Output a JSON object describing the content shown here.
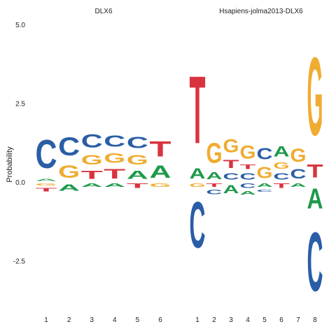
{
  "chart_data": {
    "type": "sequence-logo",
    "ylabel": "Probability",
    "yticks": [
      5.0,
      2.5,
      0.0,
      -2.5
    ],
    "ytick_labels": [
      "5.0",
      "2.5",
      "0.0",
      "-2.5"
    ],
    "ylim": [
      -4.5,
      5.3
    ],
    "colors": {
      "A": "#1e9a4b",
      "C": "#2a5ea6",
      "G": "#f0ac30",
      "T": "#d9333f"
    },
    "panels": [
      {
        "title": "DLX6",
        "x_labels": [
          "1",
          "2",
          "3",
          "4",
          "5",
          "6"
        ],
        "columns": [
          {
            "pos": [
              [
                "A",
                0.15
              ],
              [
                "C",
                1.45
              ]
            ],
            "neg": [
              [
                "G",
                0.15
              ],
              [
                "T",
                0.2
              ]
            ]
          },
          {
            "pos": [
              [
                "G",
                0.65
              ],
              [
                "C",
                0.95
              ]
            ],
            "neg": [
              [
                "A",
                0.35
              ]
            ]
          },
          {
            "pos": [
              [
                "T",
                0.45
              ],
              [
                "G",
                0.5
              ],
              [
                "C",
                0.7
              ]
            ],
            "neg": [
              [
                "A",
                0.2
              ]
            ]
          },
          {
            "pos": [
              [
                "T",
                0.5
              ],
              [
                "G",
                0.5
              ],
              [
                "C",
                0.6
              ]
            ],
            "neg": [
              [
                "A",
                0.2
              ]
            ]
          },
          {
            "pos": [
              [
                "A",
                0.45
              ],
              [
                "G",
                0.5
              ],
              [
                "C",
                0.6
              ]
            ],
            "neg": [
              [
                "T",
                0.25
              ]
            ]
          },
          {
            "pos": [
              [
                "A",
                0.65
              ],
              [
                "T",
                0.8
              ]
            ],
            "neg": [
              [
                "G",
                0.2
              ]
            ]
          }
        ]
      },
      {
        "title": "Hsapiens-jolma2013-DLX6",
        "x_labels": [
          "1",
          "2",
          "3",
          "4",
          "5",
          "6",
          "7",
          "8"
        ],
        "columns": [
          {
            "pos": [
              [
                "A",
                0.55
              ],
              [
                "T",
                3.45
              ]
            ],
            "neg": [
              [
                "G",
                0.2
              ],
              [
                "C",
                2.35
              ]
            ]
          },
          {
            "pos": [
              [
                "A",
                0.4
              ],
              [
                "G",
                1.05
              ]
            ],
            "neg": [
              [
                "T",
                0.2
              ],
              [
                "C",
                0.25
              ]
            ]
          },
          {
            "pos": [
              [
                "C",
                0.35
              ],
              [
                "T",
                0.45
              ],
              [
                "G",
                0.7
              ]
            ],
            "neg": [
              [
                "A",
                0.45
              ]
            ]
          },
          {
            "pos": [
              [
                "C",
                0.35
              ],
              [
                "T",
                0.25
              ],
              [
                "G",
                0.7
              ]
            ],
            "neg": [
              [
                "C",
                0.25
              ],
              [
                "A",
                0.2
              ]
            ]
          },
          {
            "pos": [
              [
                "G",
                0.6
              ],
              [
                "C",
                0.6
              ]
            ],
            "neg": [
              [
                "A",
                0.2
              ],
              [
                "C",
                0.15
              ]
            ]
          },
          {
            "pos": [
              [
                "C",
                0.35
              ],
              [
                "G",
                0.35
              ],
              [
                "A",
                0.55
              ]
            ],
            "neg": [
              [
                "T",
                0.25
              ]
            ]
          },
          {
            "pos": [
              [
                "C",
                0.5
              ],
              [
                "G",
                0.7
              ]
            ],
            "neg": [
              [
                "A",
                0.2
              ]
            ]
          },
          {
            "pos": [
              [
                "T",
                0.7
              ],
              [
                "G",
                4.0
              ]
            ],
            "neg": [
              [
                "A",
                1.05
              ],
              [
                "C",
                3.0
              ]
            ]
          }
        ]
      }
    ]
  }
}
